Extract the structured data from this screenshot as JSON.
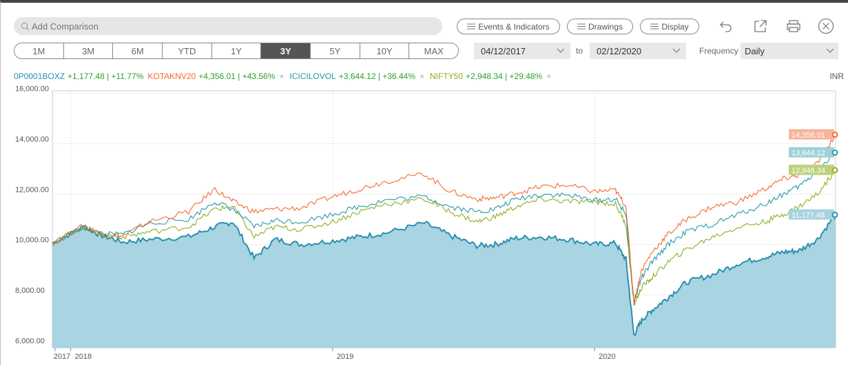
{
  "toolbar": {
    "search_placeholder": "Add Comparison",
    "events_label": "Events & Indicators",
    "drawings_label": "Drawings",
    "display_label": "Display"
  },
  "periods": [
    "1M",
    "3M",
    "6M",
    "YTD",
    "1Y",
    "3Y",
    "5Y",
    "10Y",
    "MAX"
  ],
  "active_period": "3Y",
  "date_range": {
    "from": "04/12/2017",
    "to_label": "to",
    "to": "02/12/2020"
  },
  "frequency": {
    "label": "Frequency",
    "value": "Daily"
  },
  "currency": "INR",
  "colors": {
    "fund": "#2a8fae",
    "fund_fill": "#a9d4e2",
    "kotak": "#f26a2e",
    "icici": "#2799a6",
    "nifty": "#8aae1f",
    "change": "#2e9e2e"
  },
  "legend": [
    {
      "symbol": "0P0001BOXZ",
      "change": "+1,177.48 | +11.77%",
      "color": "#2a8fae",
      "removable": false
    },
    {
      "symbol": "KOTAKNV20",
      "change": "+4,356.01 | +43.56%",
      "color": "#f26a2e",
      "removable": true
    },
    {
      "symbol": "ICICILOVOL",
      "change": "+3,644.12 | +36.44%",
      "color": "#2799a6",
      "removable": true
    },
    {
      "symbol": "NIFTY50",
      "change": "+2,948.34 | +29.48%",
      "color": "#8aae1f",
      "removable": true
    }
  ],
  "chart_data": {
    "type": "line",
    "x_axis": {
      "tick_labels": [
        "2017",
        "2018",
        "2019",
        "2020"
      ],
      "tick_x": [
        2017.94,
        2018.0,
        2019.0,
        2020.0
      ],
      "range": [
        2017.93,
        2020.92
      ]
    },
    "y_axis": {
      "tick_labels": [
        "16,000.00",
        "14,000.00",
        "12,000.00",
        "10,000.00",
        "8,000.00",
        "6,000.00"
      ],
      "ticks": [
        16000,
        14000,
        12000,
        10000,
        8000,
        6000
      ],
      "range": [
        5900,
        16100
      ]
    },
    "grid": true,
    "series": [
      {
        "name": "0P0001BOXZ",
        "style": "area",
        "end_label": "11,177.48",
        "x": [
          2017.93,
          2018.05,
          2018.12,
          2018.2,
          2018.3,
          2018.45,
          2018.55,
          2018.62,
          2018.7,
          2018.78,
          2018.88,
          2019.0,
          2019.1,
          2019.2,
          2019.35,
          2019.45,
          2019.55,
          2019.62,
          2019.7,
          2019.8,
          2019.9,
          2020.0,
          2020.08,
          2020.12,
          2020.15,
          2020.18,
          2020.22,
          2020.28,
          2020.35,
          2020.45,
          2020.55,
          2020.65,
          2020.72,
          2020.78,
          2020.85,
          2020.92
        ],
        "y": [
          10050,
          10700,
          10350,
          10100,
          10200,
          10300,
          10700,
          10900,
          9450,
          10200,
          10000,
          10150,
          10300,
          10450,
          10850,
          10350,
          9950,
          10000,
          10250,
          10300,
          10200,
          10000,
          10050,
          9400,
          6400,
          7000,
          7400,
          7900,
          8500,
          8800,
          9250,
          9500,
          9700,
          9750,
          10200,
          11177
        ]
      },
      {
        "name": "KOTAKNV20",
        "style": "line",
        "end_label": "14,356.01",
        "x": [
          2017.93,
          2018.05,
          2018.12,
          2018.2,
          2018.3,
          2018.45,
          2018.55,
          2018.62,
          2018.7,
          2018.78,
          2018.88,
          2019.0,
          2019.1,
          2019.2,
          2019.35,
          2019.45,
          2019.55,
          2019.62,
          2019.7,
          2019.8,
          2019.9,
          2020.0,
          2020.08,
          2020.12,
          2020.15,
          2020.18,
          2020.22,
          2020.28,
          2020.35,
          2020.45,
          2020.55,
          2020.65,
          2020.72,
          2020.78,
          2020.85,
          2020.92
        ],
        "y": [
          10050,
          10750,
          10400,
          10350,
          10900,
          11300,
          12200,
          11700,
          11300,
          11400,
          11450,
          11900,
          12200,
          12500,
          12800,
          12100,
          11800,
          11850,
          12050,
          12300,
          12350,
          12100,
          12150,
          11500,
          7700,
          9000,
          9700,
          10400,
          11000,
          11500,
          11700,
          12200,
          12600,
          12750,
          13200,
          14356
        ]
      },
      {
        "name": "ICICILOVOL",
        "style": "line",
        "end_label": "13,644.12",
        "x": [
          2017.93,
          2018.05,
          2018.12,
          2018.2,
          2018.3,
          2018.45,
          2018.55,
          2018.62,
          2018.7,
          2018.78,
          2018.88,
          2019.0,
          2019.1,
          2019.2,
          2019.35,
          2019.45,
          2019.55,
          2019.62,
          2019.7,
          2019.8,
          2019.9,
          2020.0,
          2020.08,
          2020.12,
          2020.15,
          2020.18,
          2020.22,
          2020.28,
          2020.35,
          2020.45,
          2020.55,
          2020.65,
          2020.72,
          2020.78,
          2020.85,
          2020.92
        ],
        "y": [
          10050,
          10700,
          10400,
          10400,
          10850,
          11000,
          11700,
          11400,
          10700,
          10950,
          10900,
          11200,
          11500,
          11750,
          11900,
          11500,
          11300,
          11400,
          11800,
          12000,
          11950,
          11750,
          11800,
          11200,
          7700,
          8700,
          9300,
          10000,
          10500,
          10800,
          11200,
          11600,
          12000,
          12300,
          12900,
          13644
        ]
      },
      {
        "name": "NIFTY50",
        "style": "line",
        "end_label": "12,948.34",
        "x": [
          2017.93,
          2018.05,
          2018.12,
          2018.2,
          2018.3,
          2018.45,
          2018.55,
          2018.62,
          2018.7,
          2018.78,
          2018.88,
          2019.0,
          2019.1,
          2019.2,
          2019.35,
          2019.45,
          2019.55,
          2019.62,
          2019.7,
          2019.8,
          2019.9,
          2020.0,
          2020.08,
          2020.12,
          2020.15,
          2020.18,
          2020.22,
          2020.28,
          2020.35,
          2020.45,
          2020.55,
          2020.65,
          2020.72,
          2020.78,
          2020.85,
          2020.92
        ],
        "y": [
          10050,
          10700,
          10400,
          10300,
          10500,
          10700,
          11400,
          11500,
          10300,
          10700,
          10600,
          10900,
          11300,
          11600,
          11800,
          11300,
          10900,
          11100,
          11500,
          11800,
          11700,
          11700,
          11600,
          10800,
          7600,
          8300,
          8700,
          9300,
          9800,
          10300,
          10700,
          10900,
          11200,
          11500,
          12000,
          12948
        ]
      }
    ]
  }
}
